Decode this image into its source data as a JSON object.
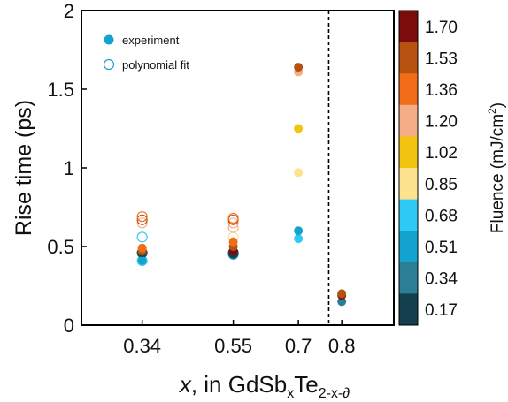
{
  "chart_data": {
    "type": "scatter",
    "x_tick_labels": [
      "0.34",
      "0.55",
      "0.7",
      "0.8"
    ],
    "x_ticks": [
      0.34,
      0.55,
      0.7,
      0.8
    ],
    "xlim": [
      0.2,
      0.92
    ],
    "y_tick_labels": [
      "0",
      "0.5",
      "1",
      "1.5",
      "2"
    ],
    "y_ticks": [
      0,
      0.5,
      1,
      1.5,
      2
    ],
    "ylim": [
      0,
      2
    ],
    "ylabel": "Rise time (ps)",
    "xlabel": {
      "var": "x",
      "mid": ", in GdSb",
      "sub1": "x",
      "te": "Te",
      "sub2": "2-x-∂"
    },
    "vline_x": 0.77,
    "legend": {
      "placement": "top-left",
      "experiment_label": "experiment",
      "fit_label": "polynomial fit"
    },
    "colorbar": {
      "label": "Fluence (mJ/cm",
      "label_sup": "2",
      "label_close": ")",
      "labels": [
        "1.70",
        "1.53",
        "1.36",
        "1.20",
        "1.02",
        "0.85",
        "0.68",
        "0.51",
        "0.34",
        "0.17"
      ],
      "colors": [
        "#7a0c0c",
        "#b5520f",
        "#f26d18",
        "#f5ad86",
        "#f2c40f",
        "#fde38f",
        "#2fc9f5",
        "#14a3cf",
        "#2a7f96",
        "#143f4f"
      ]
    },
    "experiment_points": [
      {
        "x": 0.34,
        "y": 0.41,
        "fluence": "0.51"
      },
      {
        "x": 0.34,
        "y": 0.46,
        "fluence": "0.17"
      },
      {
        "x": 0.34,
        "y": 0.47,
        "fluence": "1.53"
      },
      {
        "x": 0.34,
        "y": 0.49,
        "fluence": "1.36"
      },
      {
        "x": 0.55,
        "y": 0.45,
        "fluence": "0.17"
      },
      {
        "x": 0.55,
        "y": 0.47,
        "fluence": "1.70"
      },
      {
        "x": 0.55,
        "y": 0.5,
        "fluence": "1.53"
      },
      {
        "x": 0.55,
        "y": 0.53,
        "fluence": "1.36"
      },
      {
        "x": 0.7,
        "y": 0.55,
        "fluence": "0.68"
      },
      {
        "x": 0.7,
        "y": 0.6,
        "fluence": "0.51"
      },
      {
        "x": 0.7,
        "y": 0.97,
        "fluence": "0.85"
      },
      {
        "x": 0.7,
        "y": 1.25,
        "fluence": "1.02"
      },
      {
        "x": 0.7,
        "y": 1.61,
        "fluence": "1.20"
      },
      {
        "x": 0.7,
        "y": 1.64,
        "fluence": "1.53"
      },
      {
        "x": 0.8,
        "y": 0.15,
        "fluence": "0.34"
      },
      {
        "x": 0.8,
        "y": 0.19,
        "fluence": "1.70"
      },
      {
        "x": 0.8,
        "y": 0.2,
        "fluence": "1.53"
      }
    ],
    "fit_points": [
      {
        "x": 0.34,
        "y": 0.41,
        "fluence": "0.68"
      },
      {
        "x": 0.34,
        "y": 0.46,
        "fluence": "0.17"
      },
      {
        "x": 0.34,
        "y": 0.56,
        "fluence": "0.68"
      },
      {
        "x": 0.34,
        "y": 0.65,
        "fluence": "1.20"
      },
      {
        "x": 0.34,
        "y": 0.67,
        "fluence": "1.53"
      },
      {
        "x": 0.34,
        "y": 0.69,
        "fluence": "1.36"
      },
      {
        "x": 0.55,
        "y": 0.45,
        "fluence": "0.51"
      },
      {
        "x": 0.55,
        "y": 0.46,
        "fluence": "0.17"
      },
      {
        "x": 0.55,
        "y": 0.56,
        "fluence": "0.85"
      },
      {
        "x": 0.55,
        "y": 0.62,
        "fluence": "1.20"
      },
      {
        "x": 0.55,
        "y": 0.65,
        "fluence": "1.20"
      },
      {
        "x": 0.55,
        "y": 0.67,
        "fluence": "1.53"
      },
      {
        "x": 0.55,
        "y": 0.68,
        "fluence": "1.36"
      }
    ]
  }
}
